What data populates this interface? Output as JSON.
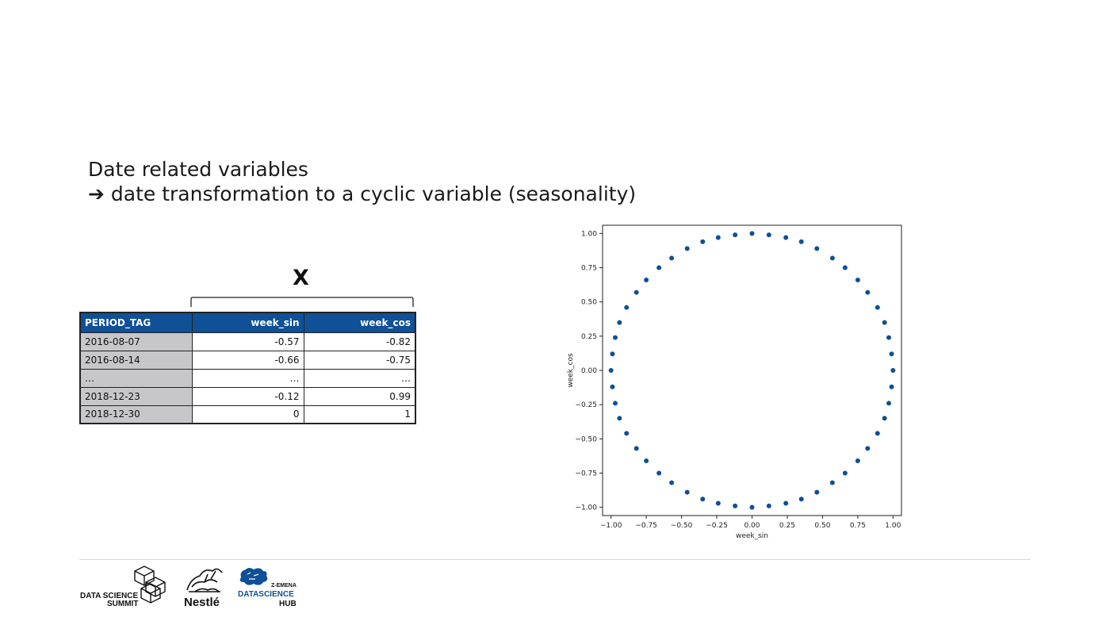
{
  "slide": {
    "title_line1": "Date related variables",
    "title_line2": "➔ date transformation to a cyclic variable (seasonality)",
    "x_label": "X"
  },
  "table": {
    "headers": [
      "PERIOD_TAG",
      "week_sin",
      "week_cos"
    ],
    "rows": [
      [
        "2016-08-07",
        "-0.57",
        "-0.82"
      ],
      [
        "2016-08-14",
        "-0.66",
        "-0.75"
      ],
      [
        "…",
        "…",
        "…"
      ],
      [
        "2018-12-23",
        "-0.12",
        "0.99"
      ],
      [
        "2018-12-30",
        "0",
        "1"
      ]
    ],
    "header_color": "#0f5097",
    "key_column_color": "#c7c7cb"
  },
  "chart_data": {
    "type": "scatter",
    "xlabel": "week_sin",
    "ylabel": "week_cos",
    "xlim": [
      -1.06,
      1.06
    ],
    "ylim": [
      -1.06,
      1.06
    ],
    "xticks": [
      -1.0,
      -0.75,
      -0.5,
      -0.25,
      0.0,
      0.25,
      0.5,
      0.75,
      1.0
    ],
    "yticks": [
      -1.0,
      -0.75,
      -0.5,
      -0.25,
      0.0,
      0.25,
      0.5,
      0.75,
      1.0
    ],
    "xtick_labels": [
      "−1.00",
      "−0.75",
      "−0.50",
      "−0.25",
      "0.00",
      "0.25",
      "0.50",
      "0.75",
      "1.00"
    ],
    "ytick_labels": [
      "−1.00",
      "−0.75",
      "−0.50",
      "−0.25",
      "0.00",
      "0.25",
      "0.50",
      "0.75",
      "1.00"
    ],
    "grid": false,
    "marker_color": "#0f4f96",
    "points": [
      {
        "x": 0.0,
        "y": 1.0
      },
      {
        "x": 0.12,
        "y": 0.99
      },
      {
        "x": 0.24,
        "y": 0.97
      },
      {
        "x": 0.35,
        "y": 0.94
      },
      {
        "x": 0.46,
        "y": 0.89
      },
      {
        "x": 0.57,
        "y": 0.82
      },
      {
        "x": 0.66,
        "y": 0.75
      },
      {
        "x": 0.75,
        "y": 0.66
      },
      {
        "x": 0.82,
        "y": 0.57
      },
      {
        "x": 0.89,
        "y": 0.46
      },
      {
        "x": 0.94,
        "y": 0.35
      },
      {
        "x": 0.97,
        "y": 0.24
      },
      {
        "x": 0.99,
        "y": 0.12
      },
      {
        "x": 1.0,
        "y": 0.0
      },
      {
        "x": 0.99,
        "y": -0.12
      },
      {
        "x": 0.97,
        "y": -0.24
      },
      {
        "x": 0.94,
        "y": -0.35
      },
      {
        "x": 0.89,
        "y": -0.46
      },
      {
        "x": 0.82,
        "y": -0.57
      },
      {
        "x": 0.75,
        "y": -0.66
      },
      {
        "x": 0.66,
        "y": -0.75
      },
      {
        "x": 0.57,
        "y": -0.82
      },
      {
        "x": 0.46,
        "y": -0.89
      },
      {
        "x": 0.35,
        "y": -0.94
      },
      {
        "x": 0.24,
        "y": -0.97
      },
      {
        "x": 0.12,
        "y": -0.99
      },
      {
        "x": 0.0,
        "y": -1.0
      },
      {
        "x": -0.12,
        "y": -0.99
      },
      {
        "x": -0.24,
        "y": -0.97
      },
      {
        "x": -0.35,
        "y": -0.94
      },
      {
        "x": -0.46,
        "y": -0.89
      },
      {
        "x": -0.57,
        "y": -0.82
      },
      {
        "x": -0.66,
        "y": -0.75
      },
      {
        "x": -0.75,
        "y": -0.66
      },
      {
        "x": -0.82,
        "y": -0.57
      },
      {
        "x": -0.89,
        "y": -0.46
      },
      {
        "x": -0.94,
        "y": -0.35
      },
      {
        "x": -0.97,
        "y": -0.24
      },
      {
        "x": -0.99,
        "y": -0.12
      },
      {
        "x": -1.0,
        "y": 0.0
      },
      {
        "x": -0.99,
        "y": 0.12
      },
      {
        "x": -0.97,
        "y": 0.24
      },
      {
        "x": -0.94,
        "y": 0.35
      },
      {
        "x": -0.89,
        "y": 0.46
      },
      {
        "x": -0.82,
        "y": 0.57
      },
      {
        "x": -0.75,
        "y": 0.66
      },
      {
        "x": -0.66,
        "y": 0.75
      },
      {
        "x": -0.57,
        "y": 0.82
      },
      {
        "x": -0.46,
        "y": 0.89
      },
      {
        "x": -0.35,
        "y": 0.94
      },
      {
        "x": -0.24,
        "y": 0.97
      },
      {
        "x": -0.12,
        "y": 0.99
      }
    ]
  },
  "footer": {
    "logos": [
      {
        "name": "data-science-summit",
        "text_line1": "DATA SCIENCE",
        "text_line2": "SUMMIT"
      },
      {
        "name": "nestle",
        "text": "Nestlé"
      },
      {
        "name": "datascience-hub",
        "text_top": "Z-EMENA",
        "text_mid": "DATASCIENCE",
        "text_bottom": "HUB"
      }
    ]
  }
}
